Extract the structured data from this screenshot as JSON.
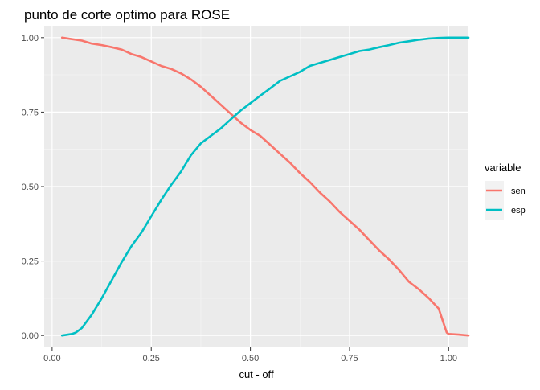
{
  "chart_data": {
    "type": "line",
    "title": "punto de corte optimo para ROSE",
    "xlabel": "cut - off",
    "ylabel": "",
    "xlim": [
      -0.02,
      1.05
    ],
    "ylim": [
      -0.04,
      1.04
    ],
    "xticks": [
      0.0,
      0.25,
      0.5,
      0.75,
      1.0
    ],
    "xtick_labels": [
      "0.00",
      "0.25",
      "0.50",
      "0.75",
      "1.00"
    ],
    "yticks": [
      0.0,
      0.25,
      0.5,
      0.75,
      1.0
    ],
    "ytick_labels": [
      "0.00",
      "0.25",
      "0.50",
      "0.75",
      "1.00"
    ],
    "grid": true,
    "background": "#ebebeb",
    "legend": {
      "title": "variable",
      "position": "right"
    },
    "series": [
      {
        "name": "sen",
        "color": "#f8766d",
        "points": [
          [
            0.025,
            1.0
          ],
          [
            0.05,
            0.995
          ],
          [
            0.075,
            0.99
          ],
          [
            0.1,
            0.98
          ],
          [
            0.125,
            0.975
          ],
          [
            0.15,
            0.968
          ],
          [
            0.175,
            0.96
          ],
          [
            0.2,
            0.945
          ],
          [
            0.225,
            0.935
          ],
          [
            0.25,
            0.92
          ],
          [
            0.275,
            0.905
          ],
          [
            0.3,
            0.895
          ],
          [
            0.325,
            0.88
          ],
          [
            0.35,
            0.86
          ],
          [
            0.375,
            0.835
          ],
          [
            0.4,
            0.805
          ],
          [
            0.425,
            0.775
          ],
          [
            0.45,
            0.745
          ],
          [
            0.475,
            0.715
          ],
          [
            0.5,
            0.69
          ],
          [
            0.525,
            0.67
          ],
          [
            0.55,
            0.64
          ],
          [
            0.575,
            0.61
          ],
          [
            0.6,
            0.58
          ],
          [
            0.625,
            0.545
          ],
          [
            0.65,
            0.515
          ],
          [
            0.675,
            0.48
          ],
          [
            0.7,
            0.45
          ],
          [
            0.725,
            0.415
          ],
          [
            0.75,
            0.385
          ],
          [
            0.775,
            0.355
          ],
          [
            0.8,
            0.32
          ],
          [
            0.825,
            0.285
          ],
          [
            0.85,
            0.255
          ],
          [
            0.875,
            0.22
          ],
          [
            0.9,
            0.18
          ],
          [
            0.925,
            0.155
          ],
          [
            0.95,
            0.125
          ],
          [
            0.975,
            0.09
          ],
          [
            0.985,
            0.05
          ],
          [
            0.995,
            0.01
          ],
          [
            1.0,
            0.005
          ],
          [
            1.025,
            0.003
          ],
          [
            1.05,
            0.0
          ]
        ]
      },
      {
        "name": "esp",
        "color": "#00bfc4",
        "points": [
          [
            0.025,
            0.0
          ],
          [
            0.05,
            0.005
          ],
          [
            0.06,
            0.01
          ],
          [
            0.075,
            0.025
          ],
          [
            0.1,
            0.07
          ],
          [
            0.125,
            0.125
          ],
          [
            0.15,
            0.185
          ],
          [
            0.175,
            0.245
          ],
          [
            0.2,
            0.3
          ],
          [
            0.225,
            0.345
          ],
          [
            0.25,
            0.4
          ],
          [
            0.275,
            0.455
          ],
          [
            0.3,
            0.505
          ],
          [
            0.325,
            0.55
          ],
          [
            0.35,
            0.605
          ],
          [
            0.375,
            0.645
          ],
          [
            0.4,
            0.67
          ],
          [
            0.425,
            0.695
          ],
          [
            0.45,
            0.725
          ],
          [
            0.475,
            0.755
          ],
          [
            0.5,
            0.78
          ],
          [
            0.525,
            0.805
          ],
          [
            0.55,
            0.83
          ],
          [
            0.575,
            0.855
          ],
          [
            0.6,
            0.87
          ],
          [
            0.625,
            0.885
          ],
          [
            0.65,
            0.905
          ],
          [
            0.675,
            0.915
          ],
          [
            0.7,
            0.925
          ],
          [
            0.725,
            0.935
          ],
          [
            0.75,
            0.945
          ],
          [
            0.775,
            0.955
          ],
          [
            0.8,
            0.96
          ],
          [
            0.825,
            0.968
          ],
          [
            0.85,
            0.975
          ],
          [
            0.875,
            0.983
          ],
          [
            0.9,
            0.988
          ],
          [
            0.925,
            0.993
          ],
          [
            0.95,
            0.997
          ],
          [
            0.975,
            0.999
          ],
          [
            1.0,
            1.0
          ],
          [
            1.05,
            1.0
          ]
        ]
      }
    ]
  }
}
